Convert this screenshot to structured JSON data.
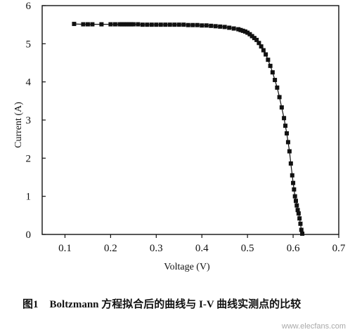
{
  "chart_data": {
    "type": "scatter",
    "title": "",
    "xlabel": "Voltage (V)",
    "ylabel": "Current (A)",
    "xlim": [
      0.05,
      0.7
    ],
    "ylim": [
      0,
      6
    ],
    "xticks": [
      "0.1",
      "0.2",
      "0.3",
      "0.4",
      "0.5",
      "0.6",
      "0.7"
    ],
    "yticks": [
      "0",
      "1",
      "2",
      "3",
      "4",
      "5",
      "6"
    ],
    "grid": false,
    "legend": "none",
    "series": [
      {
        "color": "#111111",
        "marker": "square",
        "x": [
          0.12,
          0.14,
          0.15,
          0.16,
          0.18,
          0.2,
          0.21,
          0.22,
          0.225,
          0.23,
          0.235,
          0.24,
          0.245,
          0.25,
          0.26,
          0.27,
          0.28,
          0.29,
          0.3,
          0.31,
          0.32,
          0.33,
          0.34,
          0.35,
          0.36,
          0.37,
          0.38,
          0.39,
          0.4,
          0.41,
          0.42,
          0.43,
          0.44,
          0.45,
          0.46,
          0.47,
          0.48,
          0.485,
          0.49,
          0.495,
          0.5,
          0.505,
          0.51,
          0.515,
          0.52,
          0.525,
          0.53,
          0.535,
          0.54,
          0.545,
          0.55,
          0.555,
          0.56,
          0.565,
          0.57,
          0.575,
          0.58,
          0.583,
          0.586,
          0.589,
          0.592,
          0.595,
          0.598,
          0.6,
          0.602,
          0.604,
          0.606,
          0.608,
          0.61,
          0.612,
          0.614,
          0.616,
          0.618,
          0.62
        ],
        "y": [
          5.52,
          5.51,
          5.51,
          5.51,
          5.51,
          5.51,
          5.51,
          5.51,
          5.51,
          5.51,
          5.51,
          5.51,
          5.51,
          5.51,
          5.51,
          5.5,
          5.5,
          5.5,
          5.5,
          5.5,
          5.5,
          5.5,
          5.5,
          5.5,
          5.5,
          5.49,
          5.49,
          5.49,
          5.48,
          5.48,
          5.47,
          5.46,
          5.45,
          5.44,
          5.42,
          5.4,
          5.38,
          5.36,
          5.34,
          5.32,
          5.29,
          5.25,
          5.2,
          5.15,
          5.1,
          5.02,
          4.93,
          4.83,
          4.72,
          4.58,
          4.42,
          4.25,
          4.05,
          3.85,
          3.6,
          3.33,
          3.05,
          2.85,
          2.65,
          2.42,
          2.18,
          1.86,
          1.55,
          1.35,
          1.18,
          1.0,
          0.88,
          0.76,
          0.64,
          0.55,
          0.42,
          0.28,
          0.12,
          0.02
        ]
      }
    ]
  },
  "caption": {
    "figure_number": "图1",
    "text": "Boltzmann 方程拟合后的曲线与 I-V 曲线实测点的比较"
  },
  "watermark": "www.elecfans.com"
}
